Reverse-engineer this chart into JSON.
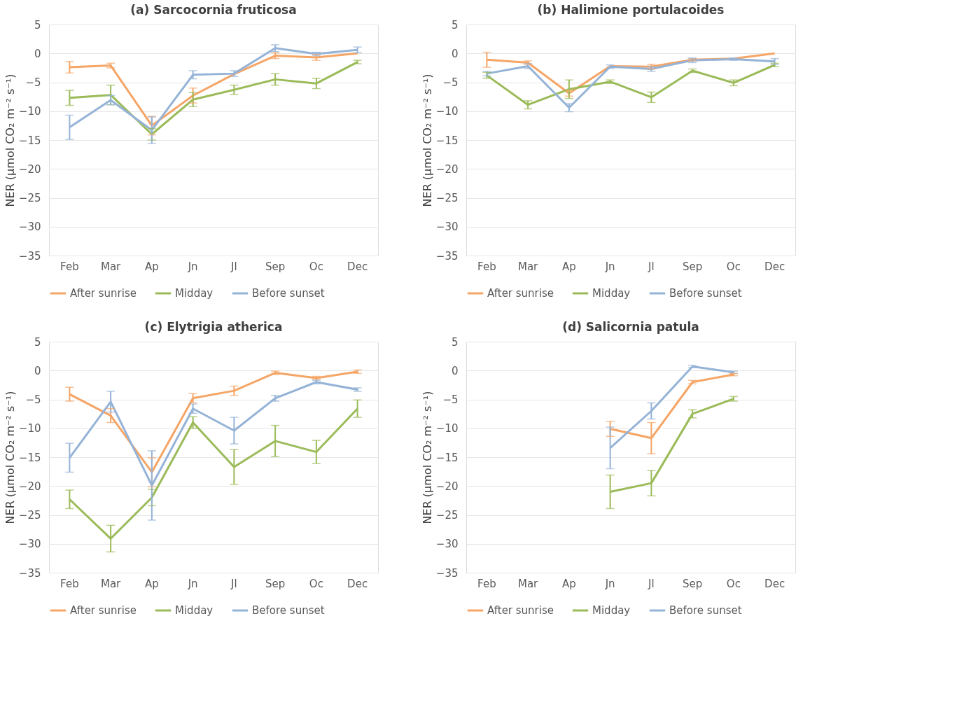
{
  "chart_data": [
    {
      "type": "line",
      "title": "(a) Sarcocornia fruticosa",
      "ylabel": "NER (µmol CO₂ m⁻² s⁻¹)",
      "categories": [
        "Feb",
        "Mar",
        "Ap",
        "Jn",
        "Jl",
        "Sep",
        "Oc",
        "Dec"
      ],
      "ylim": [
        -35,
        5
      ],
      "yticks": [
        -35,
        -30,
        -25,
        -20,
        -15,
        -10,
        -5,
        0,
        5
      ],
      "grid": "y",
      "legend": "bottom",
      "marker": "none",
      "line_style": "solid",
      "series": [
        {
          "name": "After sunrise",
          "color": "#f5a566",
          "values": [
            -2.4,
            -2.1,
            -12.5,
            -7.3,
            -3.6,
            -0.4,
            -0.7,
            0.0
          ],
          "errors": [
            1.0,
            0.4,
            1.6,
            1.3,
            null,
            0.5,
            0.5,
            null
          ]
        },
        {
          "name": "Midday",
          "color": "#9bbb59",
          "values": [
            -7.7,
            -7.2,
            -14.0,
            -8.0,
            -6.3,
            -4.5,
            -5.2,
            -1.5
          ],
          "errors": [
            1.3,
            1.7,
            1.0,
            1.2,
            0.8,
            1.0,
            0.9,
            0.3
          ]
        },
        {
          "name": "Before sunset",
          "color": "#95b3d7",
          "values": [
            -12.8,
            -8.1,
            -13.3,
            -3.7,
            -3.5,
            0.9,
            -0.1,
            0.6
          ],
          "errors": [
            2.1,
            0.8,
            2.3,
            0.7,
            0.5,
            0.6,
            0.3,
            0.5
          ]
        }
      ]
    },
    {
      "type": "line",
      "title": "(b) Halimione portulacoides",
      "ylabel": "NER (µmol CO₂ m⁻² s⁻¹)",
      "categories": [
        "Feb",
        "Mar",
        "Ap",
        "Jn",
        "Jl",
        "Sep",
        "Oc",
        "Dec"
      ],
      "ylim": [
        -35,
        5
      ],
      "yticks": [
        -35,
        -30,
        -25,
        -20,
        -15,
        -10,
        -5,
        0,
        5
      ],
      "grid": "y",
      "legend": "bottom",
      "marker": "none",
      "line_style": "solid",
      "series": [
        {
          "name": "After sunrise",
          "color": "#f5a566",
          "values": [
            -1.1,
            -1.6,
            -6.9,
            -2.2,
            -2.3,
            -1.1,
            -0.9,
            0.0
          ],
          "errors": [
            1.3,
            0.3,
            0.5,
            null,
            0.4,
            0.2,
            null,
            null
          ]
        },
        {
          "name": "Midday",
          "color": "#9bbb59",
          "values": [
            -3.8,
            -8.9,
            -6.2,
            -4.9,
            -7.6,
            -3.0,
            -5.1,
            -2.0
          ],
          "errors": [
            0.5,
            0.7,
            1.6,
            0.3,
            0.9,
            0.3,
            0.5,
            0.3
          ]
        },
        {
          "name": "Before sunset",
          "color": "#95b3d7",
          "values": [
            -3.5,
            -2.2,
            -9.4,
            -2.3,
            -2.7,
            -1.2,
            -1.0,
            -1.4
          ],
          "errors": [
            0.4,
            0.4,
            0.7,
            0.3,
            0.4,
            0.4,
            0.2,
            0.5
          ]
        }
      ]
    },
    {
      "type": "line",
      "title": "(c) Elytrigia atherica",
      "ylabel": "NER (µmol CO₂ m⁻² s⁻¹)",
      "categories": [
        "Feb",
        "Mar",
        "Ap",
        "Jn",
        "Jl",
        "Sep",
        "Oc",
        "Dec"
      ],
      "ylim": [
        -35,
        5
      ],
      "yticks": [
        -35,
        -30,
        -25,
        -20,
        -15,
        -10,
        -5,
        0,
        5
      ],
      "grid": "y",
      "legend": "bottom",
      "marker": "none",
      "line_style": "solid",
      "series": [
        {
          "name": "After sunrise",
          "color": "#f5a566",
          "values": [
            -4.1,
            -7.8,
            -17.6,
            -4.8,
            -3.5,
            -0.4,
            -1.3,
            -0.2
          ],
          "errors": [
            1.2,
            1.2,
            2.5,
            0.8,
            0.8,
            0.3,
            0.3,
            0.3
          ]
        },
        {
          "name": "Midday",
          "color": "#9bbb59",
          "values": [
            -22.3,
            -29.1,
            -22.0,
            -9.0,
            -16.7,
            -12.2,
            -14.1,
            -6.6
          ],
          "errors": [
            1.6,
            2.3,
            1.4,
            1.0,
            3.0,
            2.7,
            2.0,
            1.5
          ]
        },
        {
          "name": "Before sunset",
          "color": "#95b3d7",
          "values": [
            -15.1,
            -5.4,
            -19.9,
            -6.6,
            -10.4,
            -4.8,
            -2.0,
            -3.3
          ],
          "errors": [
            2.5,
            1.8,
            6.0,
            0.8,
            2.3,
            0.5,
            0.3,
            0.3
          ]
        }
      ]
    },
    {
      "type": "line",
      "title": "(d) Salicornia patula",
      "ylabel": "NER (µmol CO₂ m⁻² s⁻¹)",
      "categories": [
        "Feb",
        "Mar",
        "Ap",
        "Jn",
        "Jl",
        "Sep",
        "Oc",
        "Dec"
      ],
      "ylim": [
        -35,
        5
      ],
      "yticks": [
        -35,
        -30,
        -25,
        -20,
        -15,
        -10,
        -5,
        0,
        5
      ],
      "grid": "y",
      "legend": "bottom",
      "marker": "none",
      "line_style": "solid",
      "series": [
        {
          "name": "After sunrise",
          "color": "#f5a566",
          "values": [
            null,
            null,
            null,
            -10.1,
            -11.7,
            -2.0,
            -0.7,
            null
          ],
          "errors": [
            null,
            null,
            null,
            1.3,
            2.7,
            0.3,
            0.2,
            null
          ]
        },
        {
          "name": "Midday",
          "color": "#9bbb59",
          "values": [
            null,
            null,
            null,
            -21.0,
            -19.5,
            -7.5,
            -4.9,
            null
          ],
          "errors": [
            null,
            null,
            null,
            2.9,
            2.2,
            0.7,
            0.4,
            null
          ]
        },
        {
          "name": "Before sunset",
          "color": "#95b3d7",
          "values": [
            null,
            null,
            null,
            -13.4,
            -7.0,
            0.7,
            -0.3,
            null
          ],
          "errors": [
            null,
            null,
            null,
            3.6,
            1.4,
            0.2,
            0.2,
            null
          ]
        }
      ]
    }
  ]
}
